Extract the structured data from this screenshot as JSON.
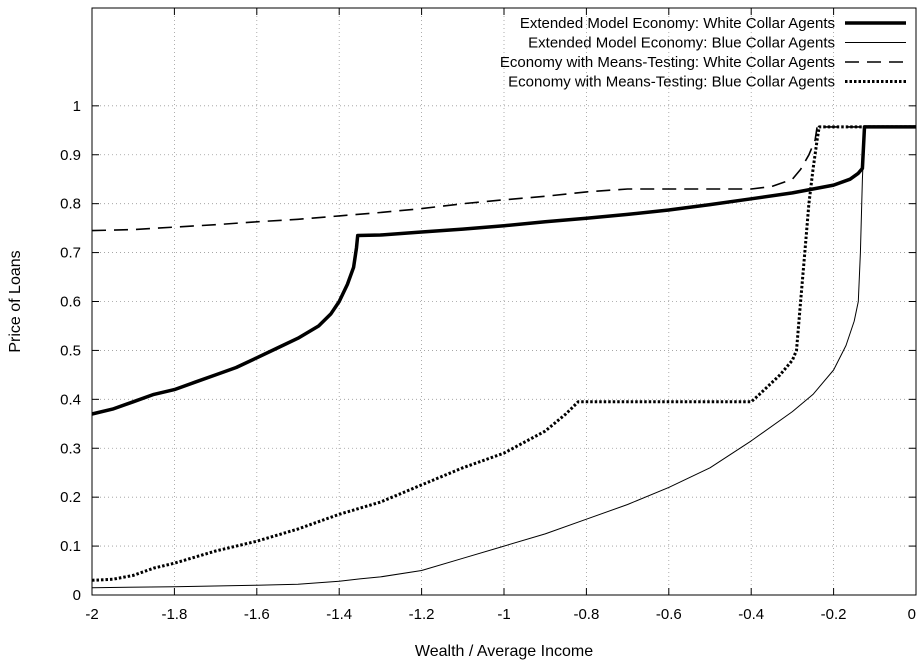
{
  "chart_data": {
    "type": "line",
    "title": "",
    "xlabel": "Wealth / Average Income",
    "ylabel": "Price of Loans",
    "xlim": [
      -2,
      0
    ],
    "ylim": [
      0,
      1.2
    ],
    "xticks": [
      -2,
      -1.8,
      -1.6,
      -1.4,
      -1.2,
      -1,
      -0.8,
      -0.6,
      -0.4,
      -0.2,
      0
    ],
    "xtick_labels": [
      "-2",
      "-1.8",
      "-1.6",
      "-1.4",
      "-1.2",
      "-1",
      "-0.8",
      "-0.6",
      "-0.4",
      "-0.2",
      "0"
    ],
    "yticks": [
      0,
      0.1,
      0.2,
      0.3,
      0.4,
      0.5,
      0.6,
      0.7,
      0.8,
      0.9,
      1
    ],
    "ytick_labels": [
      "0",
      "0.1",
      "0.2",
      "0.3",
      "0.4",
      "0.5",
      "0.6",
      "0.7",
      "0.8",
      "0.9",
      "1"
    ],
    "grid": true,
    "legend_position": "top-right",
    "series": [
      {
        "name": "Extended Model Economy: White Collar Agents",
        "style": "thick-solid",
        "points": [
          [
            -2,
            0.37
          ],
          [
            -1.95,
            0.38
          ],
          [
            -1.9,
            0.395
          ],
          [
            -1.85,
            0.41
          ],
          [
            -1.8,
            0.42
          ],
          [
            -1.75,
            0.435
          ],
          [
            -1.7,
            0.45
          ],
          [
            -1.65,
            0.465
          ],
          [
            -1.6,
            0.485
          ],
          [
            -1.55,
            0.505
          ],
          [
            -1.5,
            0.525
          ],
          [
            -1.45,
            0.55
          ],
          [
            -1.42,
            0.575
          ],
          [
            -1.4,
            0.6
          ],
          [
            -1.38,
            0.635
          ],
          [
            -1.365,
            0.67
          ],
          [
            -1.358,
            0.71
          ],
          [
            -1.355,
            0.735
          ],
          [
            -1.3,
            0.736
          ],
          [
            -1.2,
            0.742
          ],
          [
            -1.1,
            0.748
          ],
          [
            -1,
            0.755
          ],
          [
            -0.9,
            0.763
          ],
          [
            -0.8,
            0.77
          ],
          [
            -0.7,
            0.778
          ],
          [
            -0.6,
            0.787
          ],
          [
            -0.5,
            0.798
          ],
          [
            -0.4,
            0.81
          ],
          [
            -0.3,
            0.822
          ],
          [
            -0.2,
            0.838
          ],
          [
            -0.16,
            0.85
          ],
          [
            -0.14,
            0.862
          ],
          [
            -0.13,
            0.872
          ],
          [
            -0.125,
            0.957
          ],
          [
            0,
            0.957
          ]
        ]
      },
      {
        "name": "Extended Model Economy: Blue Collar Agents",
        "style": "thin-solid",
        "points": [
          [
            -2,
            0.015
          ],
          [
            -1.8,
            0.017
          ],
          [
            -1.6,
            0.02
          ],
          [
            -1.5,
            0.022
          ],
          [
            -1.4,
            0.028
          ],
          [
            -1.35,
            0.033
          ],
          [
            -1.3,
            0.037
          ],
          [
            -1.2,
            0.05
          ],
          [
            -1.1,
            0.075
          ],
          [
            -1,
            0.1
          ],
          [
            -0.9,
            0.125
          ],
          [
            -0.8,
            0.155
          ],
          [
            -0.7,
            0.185
          ],
          [
            -0.6,
            0.22
          ],
          [
            -0.5,
            0.26
          ],
          [
            -0.4,
            0.315
          ],
          [
            -0.3,
            0.375
          ],
          [
            -0.25,
            0.41
          ],
          [
            -0.2,
            0.46
          ],
          [
            -0.17,
            0.51
          ],
          [
            -0.15,
            0.56
          ],
          [
            -0.14,
            0.6
          ],
          [
            -0.135,
            0.7
          ],
          [
            -0.13,
            0.85
          ],
          [
            -0.125,
            0.957
          ],
          [
            0,
            0.957
          ]
        ]
      },
      {
        "name": "Economy with Means-Testing: White Collar Agents",
        "style": "dashed",
        "points": [
          [
            -2,
            0.745
          ],
          [
            -1.9,
            0.747
          ],
          [
            -1.8,
            0.752
          ],
          [
            -1.7,
            0.757
          ],
          [
            -1.6,
            0.763
          ],
          [
            -1.5,
            0.768
          ],
          [
            -1.4,
            0.775
          ],
          [
            -1.3,
            0.782
          ],
          [
            -1.2,
            0.79
          ],
          [
            -1.1,
            0.8
          ],
          [
            -1,
            0.808
          ],
          [
            -0.9,
            0.815
          ],
          [
            -0.8,
            0.824
          ],
          [
            -0.7,
            0.83
          ],
          [
            -0.6,
            0.83
          ],
          [
            -0.5,
            0.83
          ],
          [
            -0.4,
            0.83
          ],
          [
            -0.35,
            0.835
          ],
          [
            -0.3,
            0.85
          ],
          [
            -0.28,
            0.87
          ],
          [
            -0.26,
            0.9
          ],
          [
            -0.245,
            0.93
          ],
          [
            -0.24,
            0.957
          ],
          [
            0,
            0.957
          ]
        ]
      },
      {
        "name": "Economy with Means-Testing: Blue Collar Agents",
        "style": "dotted",
        "points": [
          [
            -2,
            0.03
          ],
          [
            -1.95,
            0.032
          ],
          [
            -1.9,
            0.04
          ],
          [
            -1.85,
            0.055
          ],
          [
            -1.8,
            0.065
          ],
          [
            -1.7,
            0.09
          ],
          [
            -1.6,
            0.11
          ],
          [
            -1.5,
            0.135
          ],
          [
            -1.4,
            0.165
          ],
          [
            -1.3,
            0.19
          ],
          [
            -1.2,
            0.225
          ],
          [
            -1.1,
            0.26
          ],
          [
            -1,
            0.29
          ],
          [
            -0.9,
            0.335
          ],
          [
            -0.85,
            0.37
          ],
          [
            -0.82,
            0.395
          ],
          [
            -0.7,
            0.395
          ],
          [
            -0.6,
            0.395
          ],
          [
            -0.5,
            0.395
          ],
          [
            -0.4,
            0.395
          ],
          [
            -0.38,
            0.41
          ],
          [
            -0.33,
            0.45
          ],
          [
            -0.3,
            0.48
          ],
          [
            -0.29,
            0.5
          ],
          [
            -0.28,
            0.6
          ],
          [
            -0.27,
            0.7
          ],
          [
            -0.26,
            0.8
          ],
          [
            -0.25,
            0.87
          ],
          [
            -0.24,
            0.93
          ],
          [
            -0.235,
            0.957
          ],
          [
            0,
            0.957
          ]
        ]
      }
    ]
  }
}
